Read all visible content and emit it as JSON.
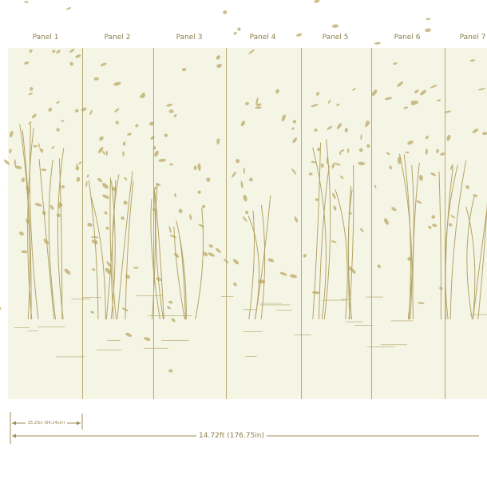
{
  "panels": [
    "Panel 1",
    "Panel 2",
    "Panel 3",
    "Panel 4",
    "Panel 5",
    "Panel 6",
    "Panel 7"
  ],
  "dimensions": {
    "panel_width": "25.25in (64.14cm)",
    "total_width": "14.72ft (176.75in)"
  },
  "colors": {
    "background": "#f5f5e6",
    "ink": "#a8964f",
    "divider": "#b7aa72"
  }
}
